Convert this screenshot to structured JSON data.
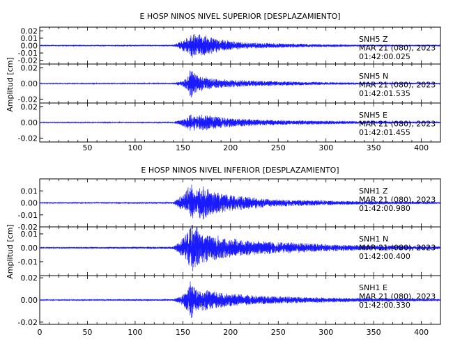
{
  "chart_data": [
    {
      "type": "line",
      "title": "E HOSP NINOS NIVEL SUPERIOR [DESPLAZAMIENTO]",
      "ylabel": "Amplitud [cm]",
      "xlim": [
        0,
        420
      ],
      "x_ticks": [
        "50",
        "100",
        "150",
        "200",
        "250",
        "300",
        "350",
        "400"
      ],
      "line_color": "#1a1aff",
      "panels": [
        {
          "ylim": [
            -0.025,
            0.025
          ],
          "y_ticks": [
            "0.02",
            "0.01",
            "0.00",
            "-0.01",
            "-0.02"
          ],
          "label": [
            "SNH5   Z",
            "MAR 21 (080), 2023",
            "01:42:00.025"
          ],
          "envelope": [
            [
              0,
              0.0005
            ],
            [
              140,
              0.0008
            ],
            [
              145,
              0.004
            ],
            [
              150,
              0.008
            ],
            [
              155,
              0.012
            ],
            [
              160,
              0.018
            ],
            [
              165,
              0.015
            ],
            [
              170,
              0.018
            ],
            [
              175,
              0.014
            ],
            [
              180,
              0.012
            ],
            [
              190,
              0.009
            ],
            [
              200,
              0.007
            ],
            [
              215,
              0.005
            ],
            [
              230,
              0.004
            ],
            [
              260,
              0.003
            ],
            [
              300,
              0.0018
            ],
            [
              340,
              0.0012
            ],
            [
              420,
              0.0008
            ]
          ]
        },
        {
          "ylim": [
            -0.025,
            0.025
          ],
          "y_ticks": [
            "0.02",
            "0.00",
            "-0.02"
          ],
          "label": [
            "SNH5   N",
            "MAR 21 (080), 2023",
            "01:42:01.535"
          ],
          "envelope": [
            [
              0,
              0.0005
            ],
            [
              140,
              0.0008
            ],
            [
              150,
              0.004
            ],
            [
              155,
              0.008
            ],
            [
              158,
              0.02
            ],
            [
              162,
              0.014
            ],
            [
              170,
              0.01
            ],
            [
              180,
              0.007
            ],
            [
              200,
              0.005
            ],
            [
              230,
              0.0035
            ],
            [
              270,
              0.0025
            ],
            [
              320,
              0.0015
            ],
            [
              420,
              0.0008
            ]
          ]
        },
        {
          "ylim": [
            -0.025,
            0.025
          ],
          "y_ticks": [
            "0.02",
            "0.00",
            "-0.02"
          ],
          "label": [
            "SNH5   E",
            "MAR 21 (080), 2023",
            "01:42:01.455"
          ],
          "envelope": [
            [
              0,
              0.0005
            ],
            [
              140,
              0.0008
            ],
            [
              148,
              0.004
            ],
            [
              155,
              0.008
            ],
            [
              158,
              0.012
            ],
            [
              165,
              0.01
            ],
            [
              175,
              0.011
            ],
            [
              185,
              0.008
            ],
            [
              200,
              0.006
            ],
            [
              230,
              0.004
            ],
            [
              270,
              0.003
            ],
            [
              320,
              0.002
            ],
            [
              420,
              0.001
            ]
          ]
        }
      ]
    },
    {
      "type": "line",
      "title": "E HOSP NINOS NIVEL INFERIOR [DESPLAZAMIENTO]",
      "ylabel": "Amplitud [cm]",
      "xlim": [
        0,
        420
      ],
      "x_ticks": [
        "0",
        "50",
        "100",
        "150",
        "200",
        "250",
        "300",
        "350",
        "400"
      ],
      "line_color": "#1a1aff",
      "panels": [
        {
          "ylim": [
            -0.02,
            0.02
          ],
          "y_ticks": [
            "0.01",
            "0.00",
            "-0.01",
            "-0.02"
          ],
          "label": [
            "SNH1   Z",
            "MAR 21 (080), 2023",
            "01:42:00.980"
          ],
          "envelope": [
            [
              0,
              0.0004
            ],
            [
              140,
              0.0007
            ],
            [
              145,
              0.004
            ],
            [
              152,
              0.008
            ],
            [
              158,
              0.017
            ],
            [
              165,
              0.012
            ],
            [
              172,
              0.014
            ],
            [
              180,
              0.01
            ],
            [
              195,
              0.008
            ],
            [
              210,
              0.006
            ],
            [
              240,
              0.0035
            ],
            [
              280,
              0.0025
            ],
            [
              330,
              0.0015
            ],
            [
              420,
              0.0008
            ]
          ]
        },
        {
          "ylim": [
            -0.02,
            0.015
          ],
          "y_ticks": [
            "0.01",
            "0.00",
            "-0.01"
          ],
          "label": [
            "SNH1   N",
            "MAR 21 (080), 2023",
            "01:42:00.400"
          ],
          "envelope": [
            [
              0,
              0.0005
            ],
            [
              140,
              0.0008
            ],
            [
              147,
              0.005
            ],
            [
              155,
              0.012
            ],
            [
              160,
              0.018
            ],
            [
              170,
              0.012
            ],
            [
              180,
              0.01
            ],
            [
              200,
              0.007
            ],
            [
              230,
              0.005
            ],
            [
              260,
              0.004
            ],
            [
              300,
              0.0028
            ],
            [
              340,
              0.002
            ],
            [
              420,
              0.0012
            ]
          ]
        },
        {
          "ylim": [
            -0.022,
            0.022
          ],
          "y_ticks": [
            "0.02",
            "0.00",
            "-0.02"
          ],
          "label": [
            "SNH1   E",
            "MAR 21 (080), 2023",
            "01:42:00.330"
          ],
          "envelope": [
            [
              0,
              0.0004
            ],
            [
              140,
              0.0008
            ],
            [
              148,
              0.004
            ],
            [
              155,
              0.01
            ],
            [
              158,
              0.018
            ],
            [
              165,
              0.01
            ],
            [
              175,
              0.01
            ],
            [
              185,
              0.008
            ],
            [
              200,
              0.006
            ],
            [
              230,
              0.004
            ],
            [
              270,
              0.003
            ],
            [
              320,
              0.002
            ],
            [
              420,
              0.001
            ]
          ]
        }
      ]
    }
  ]
}
